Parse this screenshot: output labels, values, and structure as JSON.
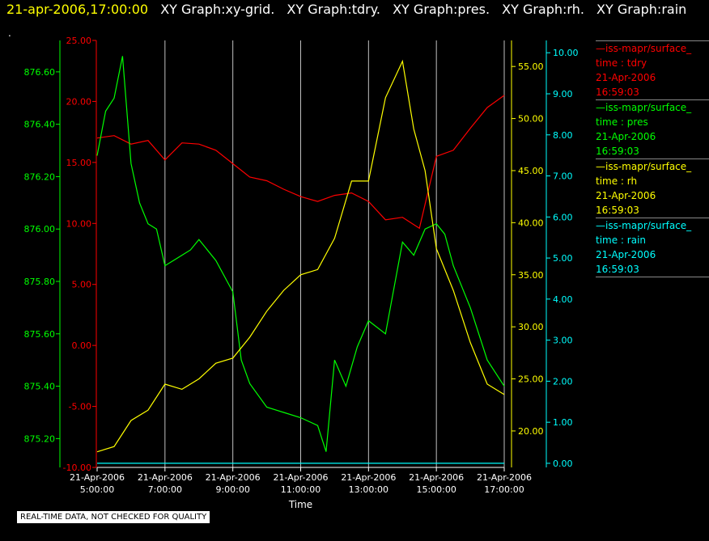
{
  "header": {
    "timestamp": "21-apr-2006,17:00:00",
    "graph_titles": [
      "XY Graph:xy-grid.",
      "XY Graph:tdry.",
      "XY Graph:pres.",
      "XY Graph:rh.",
      "XY Graph:rain"
    ],
    "dot": "."
  },
  "quality_note": "REAL-TIME DATA, NOT CHECKED FOR QUALITY",
  "colors": {
    "tdry": "#ff0000",
    "pres": "#00ff00",
    "rh": "#ffff00",
    "rain": "#00ffff",
    "grid": "#c0c0c0"
  },
  "legend": [
    {
      "title": "—iss-mapr/surface_",
      "subtitle": "time : tdry",
      "date": "21-Apr-2006",
      "time": "16:59:03",
      "color": "#ff0000"
    },
    {
      "title": "—iss-mapr/surface_",
      "subtitle": "time : pres",
      "date": "21-Apr-2006",
      "time": "16:59:03",
      "color": "#00ff00"
    },
    {
      "title": "—iss-mapr/surface_",
      "subtitle": "time : rh",
      "date": "21-Apr-2006",
      "time": "16:59:03",
      "color": "#ffff00"
    },
    {
      "title": "—iss-mapr/surface_",
      "subtitle": "time : rain",
      "date": "21-Apr-2006",
      "time": "16:59:03",
      "color": "#00ffff"
    }
  ],
  "chart_data": {
    "type": "line",
    "xlabel": "Time",
    "x_ticks": [
      {
        "date": "21-Apr-2006",
        "time": "5:00:00"
      },
      {
        "date": "21-Apr-2006",
        "time": "7:00:00"
      },
      {
        "date": "21-Apr-2006",
        "time": "9:00:00"
      },
      {
        "date": "21-Apr-2006",
        "time": "11:00:00"
      },
      {
        "date": "21-Apr-2006",
        "time": "13:00:00"
      },
      {
        "date": "21-Apr-2006",
        "time": "15:00:00"
      },
      {
        "date": "21-Apr-2006",
        "time": "17:00:00"
      }
    ],
    "xlim": [
      "2006-04-21 05:00",
      "2006-04-21 17:00"
    ],
    "grid": "vertical",
    "axes": {
      "pres": {
        "ticks": [
          "875.20",
          "875.40",
          "875.60",
          "875.80",
          "876.00",
          "876.20",
          "876.40",
          "876.60"
        ],
        "ylim": [
          875.09,
          876.72
        ]
      },
      "tdry": {
        "ticks": [
          "-10.00",
          "-5.00",
          "0.00",
          "5.00",
          "10.00",
          "15.00",
          "20.00",
          "25.00"
        ],
        "ylim": [
          -10,
          25
        ]
      },
      "rh": {
        "ticks": [
          "20.00",
          "25.00",
          "30.00",
          "35.00",
          "40.00",
          "45.00",
          "50.00",
          "55.00"
        ],
        "ylim": [
          16.5,
          57.5
        ]
      },
      "rain": {
        "ticks": [
          "0.00",
          "1.00",
          "2.00",
          "3.00",
          "4.00",
          "5.00",
          "6.00",
          "7.00",
          "8.00",
          "9.00",
          "10.00"
        ],
        "ylim": [
          -0.1,
          10.3
        ]
      }
    },
    "series": [
      {
        "key": "tdry",
        "axis": "tdry",
        "x": [
          "05:00",
          "05:30",
          "06:00",
          "06:30",
          "07:00",
          "07:30",
          "08:00",
          "08:30",
          "09:00",
          "09:30",
          "10:00",
          "10:30",
          "11:00",
          "11:30",
          "12:00",
          "12:30",
          "13:00",
          "13:30",
          "14:00",
          "14:30",
          "15:00",
          "15:30",
          "16:00",
          "16:30",
          "17:00"
        ],
        "y": [
          17.0,
          17.2,
          16.5,
          16.8,
          15.2,
          16.6,
          16.5,
          16.0,
          14.9,
          13.8,
          13.5,
          12.8,
          12.2,
          11.8,
          12.3,
          12.5,
          11.8,
          10.3,
          10.5,
          9.6,
          15.5,
          16.0,
          17.8,
          19.5,
          20.5
        ]
      },
      {
        "key": "pres",
        "axis": "pres",
        "x": [
          "05:00",
          "05:15",
          "05:30",
          "05:45",
          "06:00",
          "06:15",
          "06:30",
          "06:45",
          "07:00",
          "07:15",
          "07:30",
          "07:45",
          "08:00",
          "08:30",
          "09:00",
          "09:15",
          "09:30",
          "10:00",
          "10:30",
          "11:00",
          "11:30",
          "11:45",
          "12:00",
          "12:20",
          "12:40",
          "13:00",
          "13:30",
          "14:00",
          "14:20",
          "14:40",
          "15:00",
          "15:15",
          "15:30",
          "16:00",
          "16:30",
          "17:00"
        ],
        "y": [
          876.28,
          876.45,
          876.5,
          876.66,
          876.25,
          876.1,
          876.02,
          876.0,
          875.86,
          875.88,
          875.9,
          875.92,
          875.96,
          875.88,
          875.76,
          875.5,
          875.41,
          875.32,
          875.3,
          875.28,
          875.25,
          875.15,
          875.5,
          875.4,
          875.55,
          875.65,
          875.6,
          875.95,
          875.9,
          876.0,
          876.02,
          875.98,
          875.86,
          875.7,
          875.5,
          875.4
        ]
      },
      {
        "key": "rh",
        "axis": "rh",
        "x": [
          "05:00",
          "05:30",
          "06:00",
          "06:30",
          "07:00",
          "07:30",
          "08:00",
          "08:30",
          "09:00",
          "09:30",
          "10:00",
          "10:30",
          "11:00",
          "11:30",
          "12:00",
          "12:30",
          "13:00",
          "13:30",
          "14:00",
          "14:20",
          "14:40",
          "15:00",
          "15:30",
          "16:00",
          "16:30",
          "17:00"
        ],
        "y": [
          18.0,
          18.5,
          21.0,
          22.0,
          24.5,
          24.0,
          25.0,
          26.5,
          27.0,
          29.0,
          31.5,
          33.5,
          35.0,
          35.5,
          38.5,
          44.0,
          44.0,
          52.0,
          55.5,
          49.0,
          45.0,
          37.5,
          33.5,
          28.5,
          24.5,
          23.5
        ]
      },
      {
        "key": "rain",
        "axis": "rain",
        "x": [
          "05:00",
          "17:00"
        ],
        "y": [
          0.0,
          0.0
        ]
      }
    ]
  }
}
